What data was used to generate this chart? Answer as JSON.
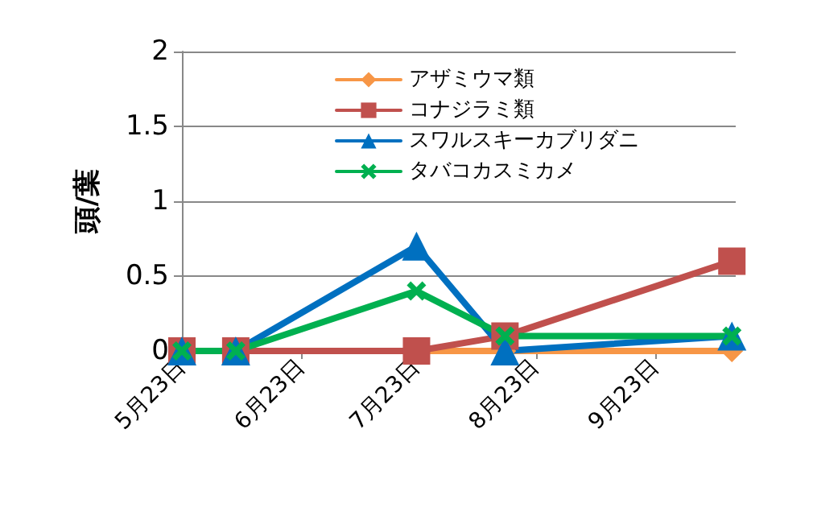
{
  "chart_data": {
    "type": "line",
    "ylabel": "頭/葉",
    "x": [
      "--05-23",
      "--06-06",
      "--07-23",
      "--08-15",
      "--10-13"
    ],
    "series": [
      {
        "name": "アザミウマ類",
        "color": "#f79646",
        "marker": "diamond",
        "values": [
          0,
          0,
          0,
          0,
          0
        ]
      },
      {
        "name": "コナジラミ類",
        "color": "#c0504d",
        "marker": "square",
        "values": [
          0,
          0,
          0,
          0.1,
          0.6
        ]
      },
      {
        "name": "スワルスキーカブリダニ",
        "color": "#0070c0",
        "marker": "triangle",
        "values": [
          0,
          0,
          0.7,
          0,
          0.1
        ]
      },
      {
        "name": "タバコカスミカメ",
        "color": "#00b050",
        "marker": "cross",
        "values": [
          0,
          0,
          0.4,
          0.1,
          0.1
        ]
      }
    ],
    "xlim": [
      "--05-23",
      "--10-14"
    ],
    "xticks": [
      {
        "value": "--05-23",
        "label": "5月23日"
      },
      {
        "value": "--06-23",
        "label": "6月23日"
      },
      {
        "value": "--07-23",
        "label": "7月23日"
      },
      {
        "value": "--08-23",
        "label": "8月23日"
      },
      {
        "value": "--09-23",
        "label": "9月23日"
      }
    ],
    "ylim": [
      0,
      2
    ],
    "yticks": [
      0,
      0.5,
      1,
      1.5,
      2
    ],
    "grid": "y",
    "legend": "top",
    "line_style": "solid"
  }
}
